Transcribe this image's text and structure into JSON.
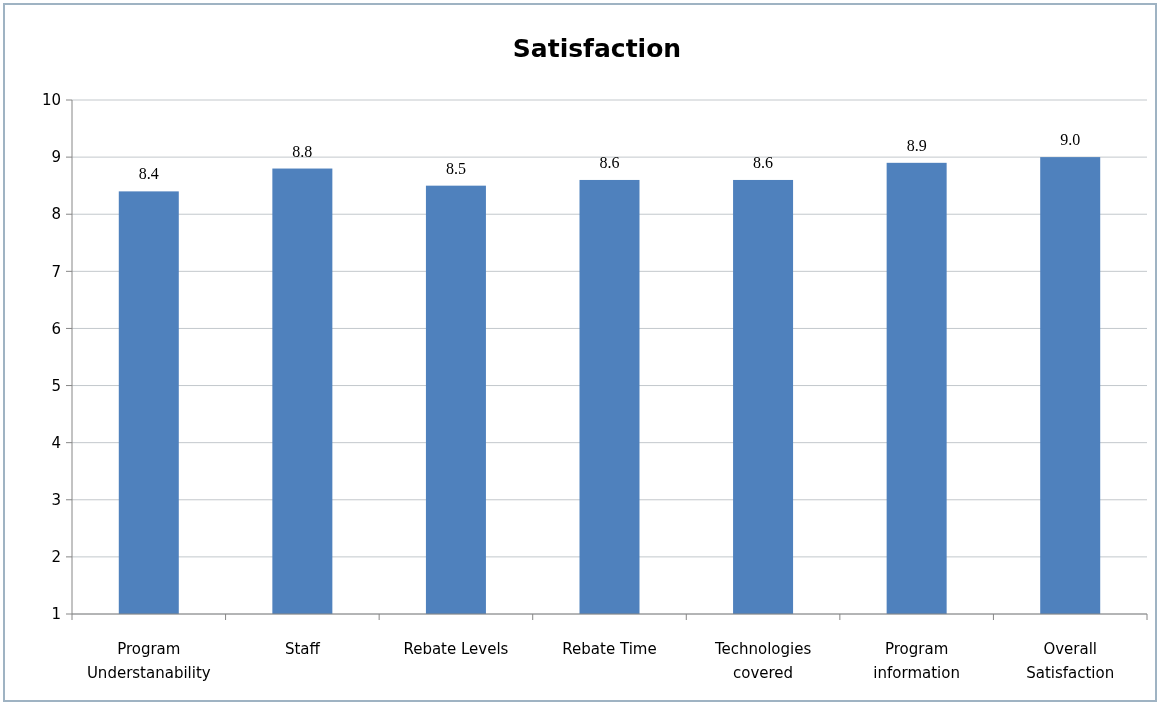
{
  "chart_data": {
    "type": "bar",
    "title": "Satisfaction",
    "categories": [
      "Program Understanability",
      "Staff",
      "Rebate Levels",
      "Rebate Time",
      "Technologies covered",
      "Program information",
      "Overall Satisfaction"
    ],
    "values": [
      8.4,
      8.8,
      8.5,
      8.6,
      8.6,
      8.9,
      9.0
    ],
    "value_labels": [
      "8.4",
      "8.8",
      "8.5",
      "8.6",
      "8.6",
      "8.9",
      "9.0"
    ],
    "color": "#4f81bd",
    "ylim": [
      1,
      10
    ],
    "yticks": [
      1,
      2,
      3,
      4,
      5,
      6,
      7,
      8,
      9,
      10
    ],
    "grid": "y"
  }
}
